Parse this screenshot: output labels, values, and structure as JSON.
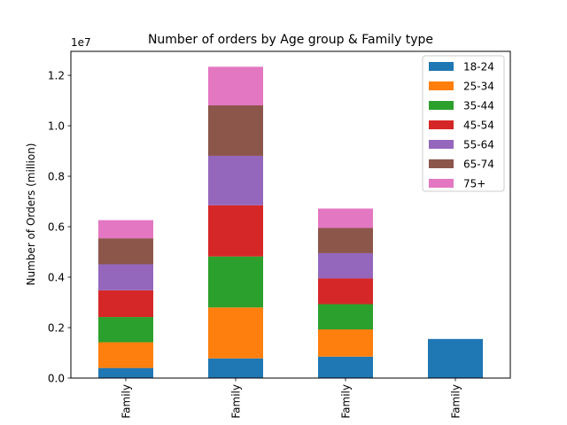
{
  "chart_data": {
    "type": "bar",
    "stacked": true,
    "title": "Number of orders by Age group & Family type",
    "xlabel": "",
    "ylabel": "Number of Orders (million)",
    "offset_label": "1e7",
    "categories": [
      "Family",
      "Family",
      "Family",
      "Family"
    ],
    "ylim": [
      0,
      12950000
    ],
    "yticks": [
      0,
      2000000,
      4000000,
      6000000,
      8000000,
      10000000,
      12000000
    ],
    "ytick_labels": [
      "0.0",
      "0.2",
      "0.4",
      "0.6",
      "0.8",
      "1.0",
      "1.2"
    ],
    "grid": false,
    "legend_position": "top-right",
    "series": [
      {
        "name": "18-24",
        "color": "#1f77b4",
        "values": [
          400000,
          780000,
          850000,
          1550000
        ]
      },
      {
        "name": "25-34",
        "color": "#ff7f0e",
        "values": [
          1020000,
          2020000,
          1080000,
          0
        ]
      },
      {
        "name": "35-44",
        "color": "#2ca02c",
        "values": [
          1000000,
          2020000,
          1000000,
          0
        ]
      },
      {
        "name": "45-54",
        "color": "#d62728",
        "values": [
          1060000,
          2030000,
          1020000,
          0
        ]
      },
      {
        "name": "55-64",
        "color": "#9467bd",
        "values": [
          1030000,
          1960000,
          1000000,
          0
        ]
      },
      {
        "name": "65-74",
        "color": "#8c564b",
        "values": [
          1030000,
          2000000,
          1000000,
          0
        ]
      },
      {
        "name": "75+",
        "color": "#e377c2",
        "values": [
          720000,
          1530000,
          770000,
          0
        ]
      }
    ]
  }
}
